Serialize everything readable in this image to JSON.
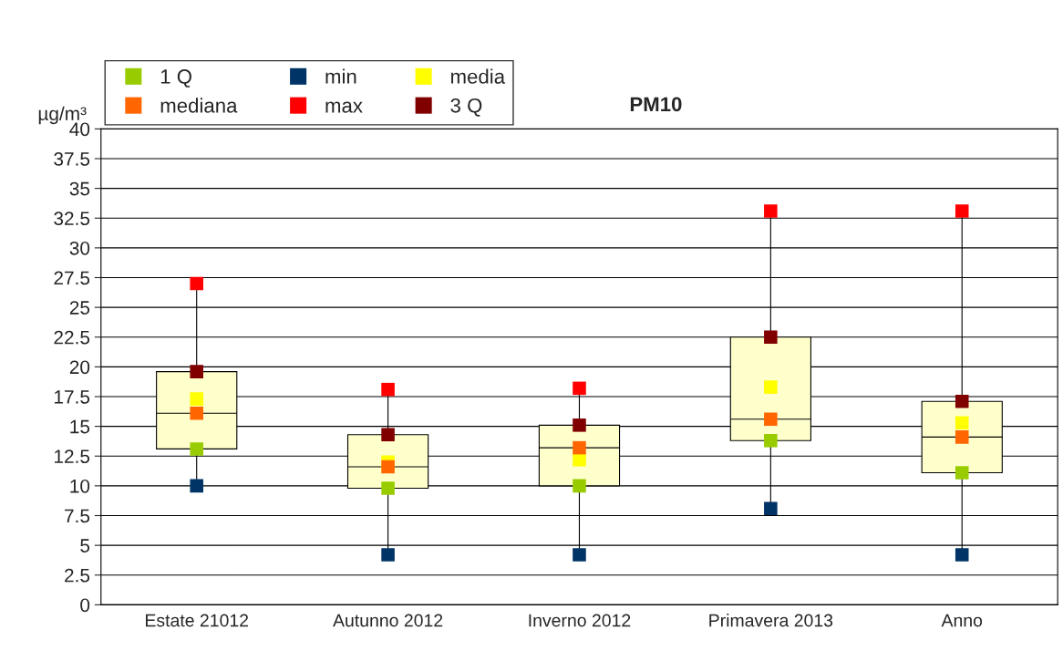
{
  "chart_data": {
    "type": "box",
    "title": "PM10",
    "ylabel": "µg/m³",
    "categories": [
      "Estate 21012",
      "Autunno 2012",
      "Inverno 2012",
      "Primavera 2013",
      "Anno"
    ],
    "boxes": [
      {
        "low": 10.0,
        "q1": 13.1,
        "median": 16.1,
        "q3": 19.6,
        "high": 27.0
      },
      {
        "low": 4.2,
        "q1": 9.8,
        "median": 11.6,
        "q3": 14.3,
        "high": 18.1
      },
      {
        "low": 4.2,
        "q1": 10.0,
        "median": 13.2,
        "q3": 15.1,
        "high": 18.2
      },
      {
        "low": 8.1,
        "q1": 13.8,
        "median": 15.6,
        "q3": 22.5,
        "high": 33.1
      },
      {
        "low": 4.2,
        "q1": 11.1,
        "median": 14.1,
        "q3": 17.1,
        "high": 33.1
      }
    ],
    "color": "#ffffcc",
    "series": [
      {
        "type": "scatter",
        "name": "1 Q",
        "color": "#99cc00",
        "values": [
          13.1,
          9.8,
          10.0,
          13.8,
          11.1
        ]
      },
      {
        "type": "scatter",
        "name": "min",
        "color": "#003366",
        "values": [
          10.0,
          4.2,
          4.2,
          8.1,
          4.2
        ]
      },
      {
        "type": "scatter",
        "name": "media",
        "color": "#ffff00",
        "values": [
          17.3,
          12.0,
          12.2,
          18.3,
          15.3
        ]
      },
      {
        "type": "scatter",
        "name": "mediana",
        "color": "#ff6600",
        "values": [
          16.1,
          11.6,
          13.2,
          15.6,
          14.1
        ]
      },
      {
        "type": "scatter",
        "name": "max",
        "color": "#ff0000",
        "values": [
          27.0,
          18.1,
          18.2,
          33.1,
          33.1
        ]
      },
      {
        "type": "scatter",
        "name": "3 Q",
        "color": "#800000",
        "values": [
          19.6,
          14.3,
          15.1,
          22.5,
          17.1
        ]
      }
    ],
    "ylim": [
      0,
      40
    ],
    "yticks": [
      0,
      2.5,
      5,
      7.5,
      10,
      12.5,
      15,
      17.5,
      20,
      22.5,
      25,
      27.5,
      30,
      32.5,
      35,
      37.5,
      40
    ],
    "grid": "y",
    "legend": "top left",
    "marker": "square"
  }
}
